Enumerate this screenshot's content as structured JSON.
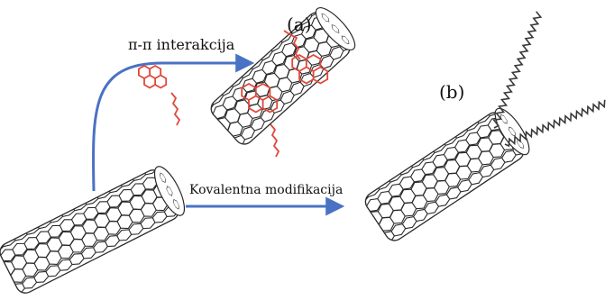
{
  "labels": {
    "a": "(a)",
    "b": "(b)",
    "pi_pi": "π-π interakcija",
    "covalent": "Kovalentna modifikacija"
  },
  "colors": {
    "tube": "#2a2a2a",
    "arrow": "#4a72c4",
    "molecule": "#e0473a",
    "chain": "#3a3a3a"
  }
}
